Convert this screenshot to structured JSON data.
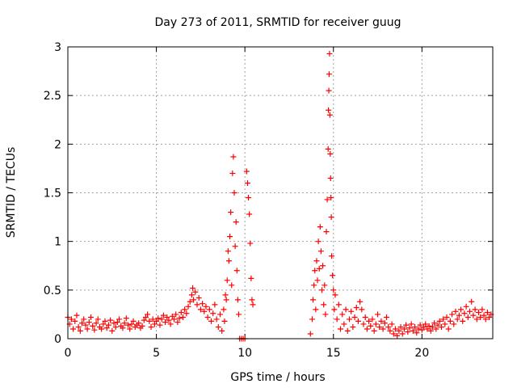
{
  "chart_data": {
    "type": "scatter",
    "title": "Day 273 of 2011, SRMTID for receiver guug",
    "xlabel": "GPS time / hours",
    "ylabel": "SRMTID / TECUs",
    "xlim": [
      0,
      24
    ],
    "ylim": [
      0,
      3
    ],
    "xticks": [
      0,
      5,
      10,
      15,
      20
    ],
    "yticks": [
      0,
      0.5,
      1,
      1.5,
      2,
      2.5,
      3
    ],
    "xtick_labels": [
      "0",
      "5",
      "10",
      "15",
      "20"
    ],
    "ytick_labels": [
      "0",
      "0.5",
      "1",
      "1.5",
      "2",
      "2.5",
      "3"
    ],
    "grid": true,
    "marker": "+",
    "color": "#ff0000",
    "series": [
      {
        "points": [
          [
            0.0,
            0.22
          ],
          [
            0.1,
            0.15
          ],
          [
            0.2,
            0.2
          ],
          [
            0.3,
            0.1
          ],
          [
            0.4,
            0.18
          ],
          [
            0.5,
            0.24
          ],
          [
            0.6,
            0.12
          ],
          [
            0.7,
            0.08
          ],
          [
            0.8,
            0.16
          ],
          [
            0.9,
            0.2
          ],
          [
            1.0,
            0.14
          ],
          [
            1.1,
            0.1
          ],
          [
            1.2,
            0.17
          ],
          [
            1.3,
            0.22
          ],
          [
            1.4,
            0.13
          ],
          [
            1.5,
            0.09
          ],
          [
            1.6,
            0.16
          ],
          [
            1.7,
            0.2
          ],
          [
            1.8,
            0.12
          ],
          [
            1.9,
            0.1
          ],
          [
            2.0,
            0.15
          ],
          [
            2.1,
            0.18
          ],
          [
            2.2,
            0.11
          ],
          [
            2.3,
            0.14
          ],
          [
            2.4,
            0.19
          ],
          [
            2.5,
            0.08
          ],
          [
            2.6,
            0.16
          ],
          [
            2.7,
            0.12
          ],
          [
            2.8,
            0.17
          ],
          [
            2.9,
            0.2
          ],
          [
            3.0,
            0.13
          ],
          [
            3.1,
            0.11
          ],
          [
            3.2,
            0.16
          ],
          [
            3.3,
            0.21
          ],
          [
            3.4,
            0.14
          ],
          [
            3.5,
            0.1
          ],
          [
            3.6,
            0.15
          ],
          [
            3.7,
            0.18
          ],
          [
            3.8,
            0.12
          ],
          [
            3.9,
            0.14
          ],
          [
            4.0,
            0.16
          ],
          [
            4.1,
            0.11
          ],
          [
            4.2,
            0.13
          ],
          [
            4.3,
            0.19
          ],
          [
            4.4,
            0.22
          ],
          [
            4.5,
            0.25
          ],
          [
            4.6,
            0.18
          ],
          [
            4.7,
            0.12
          ],
          [
            4.8,
            0.2
          ],
          [
            4.9,
            0.15
          ],
          [
            5.0,
            0.18
          ],
          [
            5.1,
            0.21
          ],
          [
            5.2,
            0.14
          ],
          [
            5.3,
            0.2
          ],
          [
            5.4,
            0.24
          ],
          [
            5.5,
            0.17
          ],
          [
            5.6,
            0.22
          ],
          [
            5.7,
            0.19
          ],
          [
            5.8,
            0.15
          ],
          [
            5.9,
            0.23
          ],
          [
            6.0,
            0.2
          ],
          [
            6.1,
            0.25
          ],
          [
            6.2,
            0.17
          ],
          [
            6.3,
            0.21
          ],
          [
            6.4,
            0.27
          ],
          [
            6.5,
            0.22
          ],
          [
            6.6,
            0.3
          ],
          [
            6.7,
            0.26
          ],
          [
            6.8,
            0.33
          ],
          [
            6.9,
            0.38
          ],
          [
            7.0,
            0.45
          ],
          [
            7.05,
            0.52
          ],
          [
            7.1,
            0.4
          ],
          [
            7.2,
            0.48
          ],
          [
            7.3,
            0.35
          ],
          [
            7.4,
            0.42
          ],
          [
            7.5,
            0.3
          ],
          [
            7.6,
            0.36
          ],
          [
            7.7,
            0.28
          ],
          [
            7.8,
            0.33
          ],
          [
            7.9,
            0.22
          ],
          [
            8.0,
            0.3
          ],
          [
            8.1,
            0.18
          ],
          [
            8.2,
            0.26
          ],
          [
            8.3,
            0.35
          ],
          [
            8.4,
            0.2
          ],
          [
            8.5,
            0.12
          ],
          [
            8.6,
            0.25
          ],
          [
            8.7,
            0.08
          ],
          [
            8.8,
            0.3
          ],
          [
            8.85,
            0.18
          ],
          [
            8.9,
            0.45
          ],
          [
            8.95,
            0.4
          ],
          [
            9.0,
            0.6
          ],
          [
            9.05,
            0.9
          ],
          [
            9.1,
            0.8
          ],
          [
            9.15,
            1.05
          ],
          [
            9.2,
            1.3
          ],
          [
            9.25,
            0.55
          ],
          [
            9.3,
            1.7
          ],
          [
            9.35,
            1.87
          ],
          [
            9.4,
            1.5
          ],
          [
            9.45,
            0.95
          ],
          [
            9.5,
            1.2
          ],
          [
            9.55,
            0.7
          ],
          [
            9.6,
            0.4
          ],
          [
            9.65,
            0.25
          ],
          [
            9.7,
            0.0
          ],
          [
            9.8,
            0.0
          ],
          [
            9.9,
            0.0
          ],
          [
            10.0,
            0.0
          ],
          [
            10.1,
            1.72
          ],
          [
            10.15,
            1.6
          ],
          [
            10.2,
            1.45
          ],
          [
            10.25,
            1.28
          ],
          [
            10.3,
            0.98
          ],
          [
            10.35,
            0.62
          ],
          [
            10.4,
            0.4
          ],
          [
            10.45,
            0.35
          ],
          [
            13.7,
            0.05
          ],
          [
            13.8,
            0.2
          ],
          [
            13.85,
            0.4
          ],
          [
            13.9,
            0.55
          ],
          [
            13.95,
            0.7
          ],
          [
            14.0,
            0.3
          ],
          [
            14.05,
            0.8
          ],
          [
            14.1,
            0.6
          ],
          [
            14.15,
            1.0
          ],
          [
            14.2,
            0.72
          ],
          [
            14.25,
            1.15
          ],
          [
            14.3,
            0.9
          ],
          [
            14.35,
            0.5
          ],
          [
            14.4,
            0.75
          ],
          [
            14.45,
            0.35
          ],
          [
            14.5,
            0.55
          ],
          [
            14.55,
            0.25
          ],
          [
            14.6,
            1.1
          ],
          [
            14.65,
            1.43
          ],
          [
            14.7,
            1.95
          ],
          [
            14.72,
            2.35
          ],
          [
            14.74,
            2.55
          ],
          [
            14.76,
            2.72
          ],
          [
            14.78,
            2.93
          ],
          [
            14.8,
            2.3
          ],
          [
            14.82,
            1.9
          ],
          [
            14.84,
            1.65
          ],
          [
            14.86,
            1.45
          ],
          [
            14.88,
            1.25
          ],
          [
            14.9,
            0.85
          ],
          [
            14.95,
            0.65
          ],
          [
            15.0,
            0.5
          ],
          [
            15.05,
            0.3
          ],
          [
            15.1,
            0.45
          ],
          [
            15.2,
            0.2
          ],
          [
            15.3,
            0.35
          ],
          [
            15.4,
            0.1
          ],
          [
            15.5,
            0.25
          ],
          [
            15.6,
            0.15
          ],
          [
            15.7,
            0.3
          ],
          [
            15.8,
            0.08
          ],
          [
            15.9,
            0.2
          ],
          [
            16.0,
            0.28
          ],
          [
            16.1,
            0.12
          ],
          [
            16.2,
            0.22
          ],
          [
            16.3,
            0.32
          ],
          [
            16.4,
            0.18
          ],
          [
            16.5,
            0.38
          ],
          [
            16.6,
            0.3
          ],
          [
            16.7,
            0.15
          ],
          [
            16.8,
            0.22
          ],
          [
            16.9,
            0.1
          ],
          [
            17.0,
            0.18
          ],
          [
            17.1,
            0.13
          ],
          [
            17.2,
            0.2
          ],
          [
            17.3,
            0.08
          ],
          [
            17.4,
            0.15
          ],
          [
            17.5,
            0.25
          ],
          [
            17.6,
            0.12
          ],
          [
            17.7,
            0.18
          ],
          [
            17.8,
            0.1
          ],
          [
            17.9,
            0.16
          ],
          [
            18.0,
            0.22
          ],
          [
            18.1,
            0.12
          ],
          [
            18.2,
            0.08
          ],
          [
            18.3,
            0.15
          ],
          [
            18.4,
            0.05
          ],
          [
            18.5,
            0.1
          ],
          [
            18.6,
            0.03
          ],
          [
            18.7,
            0.08
          ],
          [
            18.8,
            0.12
          ],
          [
            18.9,
            0.05
          ],
          [
            19.0,
            0.1
          ],
          [
            19.1,
            0.14
          ],
          [
            19.2,
            0.07
          ],
          [
            19.3,
            0.11
          ],
          [
            19.4,
            0.15
          ],
          [
            19.5,
            0.08
          ],
          [
            19.6,
            0.12
          ],
          [
            19.7,
            0.06
          ],
          [
            19.8,
            0.1
          ],
          [
            19.9,
            0.14
          ],
          [
            20.0,
            0.09
          ],
          [
            20.1,
            0.12
          ],
          [
            20.2,
            0.15
          ],
          [
            20.3,
            0.1
          ],
          [
            20.4,
            0.13
          ],
          [
            20.5,
            0.08
          ],
          [
            20.6,
            0.12
          ],
          [
            20.7,
            0.16
          ],
          [
            20.8,
            0.1
          ],
          [
            20.9,
            0.14
          ],
          [
            21.0,
            0.18
          ],
          [
            21.1,
            0.12
          ],
          [
            21.2,
            0.2
          ],
          [
            21.3,
            0.15
          ],
          [
            21.4,
            0.22
          ],
          [
            21.5,
            0.1
          ],
          [
            21.6,
            0.18
          ],
          [
            21.7,
            0.25
          ],
          [
            21.8,
            0.15
          ],
          [
            21.9,
            0.28
          ],
          [
            22.0,
            0.2
          ],
          [
            22.1,
            0.24
          ],
          [
            22.2,
            0.3
          ],
          [
            22.3,
            0.18
          ],
          [
            22.4,
            0.26
          ],
          [
            22.5,
            0.33
          ],
          [
            22.6,
            0.22
          ],
          [
            22.7,
            0.28
          ],
          [
            22.8,
            0.38
          ],
          [
            22.9,
            0.24
          ],
          [
            23.0,
            0.3
          ],
          [
            23.1,
            0.2
          ],
          [
            23.2,
            0.27
          ],
          [
            23.3,
            0.22
          ],
          [
            23.4,
            0.3
          ],
          [
            23.5,
            0.24
          ],
          [
            23.6,
            0.2
          ],
          [
            23.7,
            0.27
          ],
          [
            23.8,
            0.22
          ],
          [
            23.9,
            0.25
          ]
        ]
      }
    ]
  }
}
